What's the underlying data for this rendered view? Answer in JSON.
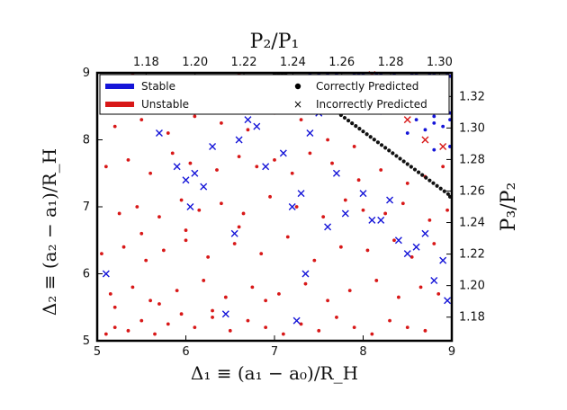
{
  "chart_data": {
    "type": "scatter",
    "xlabel": "Δ₁ ≡ (a₁ − a₀)/R_H",
    "ylabel": "Δ₂ ≡ (a₂ − a₁)/R_H",
    "top_xlabel": "P₂/P₁",
    "right_ylabel": "P₃/P₂",
    "xlim": [
      5,
      9
    ],
    "ylim": [
      5,
      9
    ],
    "x_ticks": [
      "5",
      "6",
      "7",
      "8",
      "9"
    ],
    "y_ticks": [
      "5",
      "6",
      "7",
      "8",
      "9"
    ],
    "top_ticks": [
      "1.18",
      "1.20",
      "1.22",
      "1.24",
      "1.26",
      "1.28",
      "1.30"
    ],
    "right_ticks": [
      "1.18",
      "1.20",
      "1.22",
      "1.24",
      "1.26",
      "1.28",
      "1.30",
      "1.32"
    ],
    "legend": {
      "placement": "top",
      "stable_label": "Stable",
      "unstable_label": "Unstable",
      "correct_label": "Correctly Predicted",
      "incorrect_label": "Incorrectly Predicted"
    },
    "colors": {
      "stable": "#1515d8",
      "unstable": "#d81818",
      "boundary": "#111111"
    },
    "boundary_line": {
      "x": [
        7.0,
        9.0
      ],
      "y": [
        9.1,
        7.15
      ]
    },
    "series": [
      {
        "name": "Unstable",
        "marker": "dot",
        "color": "#d81818",
        "x": [
          5.1,
          5.2,
          5.35,
          5.5,
          5.65,
          5.8,
          5.95,
          6.1,
          6.3,
          6.5,
          6.7,
          6.9,
          7.1,
          7.3,
          7.5,
          7.7,
          7.9,
          8.1,
          8.3,
          8.5,
          8.7,
          5.15,
          5.4,
          5.6,
          5.9,
          6.2,
          6.45,
          6.75,
          7.05,
          7.35,
          7.6,
          7.85,
          8.15,
          8.4,
          8.65,
          8.85,
          5.05,
          5.3,
          5.55,
          5.75,
          6.0,
          6.25,
          6.55,
          6.85,
          7.15,
          7.45,
          7.75,
          8.05,
          8.35,
          8.55,
          8.8,
          5.25,
          5.45,
          5.7,
          5.95,
          6.15,
          6.4,
          6.65,
          6.95,
          7.25,
          7.55,
          7.8,
          8.0,
          8.25,
          8.45,
          8.75,
          8.95,
          5.1,
          5.35,
          5.6,
          5.85,
          6.05,
          6.35,
          6.6,
          6.8,
          7.0,
          7.2,
          7.4,
          7.65,
          7.95,
          8.2,
          8.5,
          8.7,
          8.9,
          5.2,
          5.5,
          5.8,
          6.1,
          6.4,
          6.7,
          7.0,
          7.3,
          7.6,
          7.9,
          5.3,
          5.6,
          5.9,
          6.2,
          6.5,
          6.8,
          5.4,
          5.8,
          6.2,
          6.6,
          7.0,
          5.2,
          5.7,
          6.3,
          6.9,
          5.5,
          6.0,
          6.6
        ],
        "y": [
          5.1,
          5.2,
          5.15,
          5.3,
          5.1,
          5.25,
          5.4,
          5.2,
          5.35,
          5.15,
          5.3,
          5.2,
          5.1,
          5.25,
          5.15,
          5.35,
          5.2,
          5.1,
          5.3,
          5.2,
          5.15,
          5.7,
          5.8,
          5.6,
          5.75,
          5.9,
          5.65,
          5.8,
          5.7,
          5.85,
          5.6,
          5.75,
          5.9,
          5.65,
          5.8,
          5.7,
          6.3,
          6.4,
          6.2,
          6.35,
          6.5,
          6.25,
          6.45,
          6.3,
          6.55,
          6.2,
          6.4,
          6.35,
          6.5,
          6.25,
          6.45,
          6.9,
          7.0,
          6.85,
          7.1,
          6.95,
          7.05,
          6.9,
          7.15,
          7.0,
          6.85,
          7.1,
          6.95,
          6.9,
          7.05,
          6.8,
          6.95,
          7.6,
          7.7,
          7.5,
          7.8,
          7.65,
          7.55,
          7.75,
          7.6,
          7.7,
          7.5,
          7.8,
          7.65,
          7.4,
          7.55,
          7.35,
          7.45,
          7.6,
          8.2,
          8.3,
          8.1,
          8.35,
          8.25,
          8.15,
          8.4,
          8.3,
          8.0,
          7.9,
          8.7,
          8.8,
          8.65,
          8.75,
          8.6,
          8.85,
          9.0,
          8.95,
          8.9,
          9.05,
          8.95,
          5.5,
          5.55,
          5.45,
          5.6,
          6.6,
          6.65,
          6.7
        ]
      },
      {
        "name": "Stable",
        "marker": "dot",
        "color": "#1515d8",
        "x": [
          7.6,
          7.8,
          8.0,
          8.2,
          8.4,
          8.6,
          8.8,
          9.0,
          7.9,
          8.1,
          8.3,
          8.5,
          8.7,
          8.9,
          8.2,
          8.4,
          8.6,
          8.8,
          9.0,
          8.5,
          8.7,
          8.9,
          8.8,
          9.0,
          7.7,
          7.95,
          8.15,
          8.35,
          8.55,
          8.75,
          8.95,
          8.05,
          8.25,
          8.45,
          8.65,
          8.85,
          8.3,
          8.5,
          8.7,
          8.9,
          8.6,
          8.8,
          9.0,
          7.4,
          7.5,
          7.7,
          7.9,
          8.1
        ],
        "y": [
          9.05,
          8.95,
          9.0,
          9.05,
          8.95,
          9.0,
          9.05,
          8.95,
          8.7,
          8.75,
          8.8,
          8.65,
          8.7,
          8.75,
          8.4,
          8.45,
          8.5,
          8.35,
          8.4,
          8.1,
          8.15,
          8.2,
          7.85,
          7.9,
          9.1,
          9.1,
          9.1,
          9.1,
          9.1,
          9.1,
          9.1,
          8.9,
          8.85,
          8.9,
          8.85,
          8.9,
          8.6,
          8.55,
          8.6,
          8.55,
          8.3,
          8.25,
          8.3,
          9.1,
          9.05,
          9.0,
          9.08,
          9.05
        ]
      },
      {
        "name": "Incorrect (stable)",
        "marker": "x",
        "color": "#1515d8",
        "x": [
          5.6,
          5.8,
          5.9,
          6.0,
          6.1,
          6.3,
          6.4,
          6.5,
          6.6,
          6.7,
          6.9,
          7.1,
          7.2,
          7.3,
          7.4,
          7.5,
          7.6,
          7.8,
          8.0,
          8.2,
          8.4,
          8.6,
          8.7,
          8.8,
          8.9,
          5.7,
          6.2,
          6.8,
          7.0,
          7.7,
          8.3,
          8.5,
          5.1,
          6.55,
          7.35,
          8.1,
          8.95,
          6.05,
          6.45,
          7.25
        ],
        "y": [
          8.9,
          8.7,
          7.6,
          7.4,
          7.5,
          7.9,
          8.6,
          8.5,
          8.0,
          8.3,
          7.6,
          7.8,
          7.0,
          7.2,
          8.1,
          8.4,
          6.7,
          6.9,
          7.2,
          6.8,
          6.5,
          6.4,
          6.6,
          5.9,
          6.2,
          8.1,
          7.3,
          8.2,
          8.7,
          7.5,
          7.1,
          6.3,
          6.0,
          6.6,
          6.0,
          6.8,
          5.6,
          7.0,
          5.4,
          5.3
        ]
      },
      {
        "name": "Incorrect (unstable)",
        "marker": "x",
        "color": "#d81818",
        "x": [
          8.1,
          8.3,
          8.5,
          8.7,
          7.6,
          8.9,
          8.4
        ],
        "y": [
          9.0,
          8.6,
          8.3,
          8.0,
          8.8,
          7.9,
          8.9
        ]
      }
    ]
  }
}
